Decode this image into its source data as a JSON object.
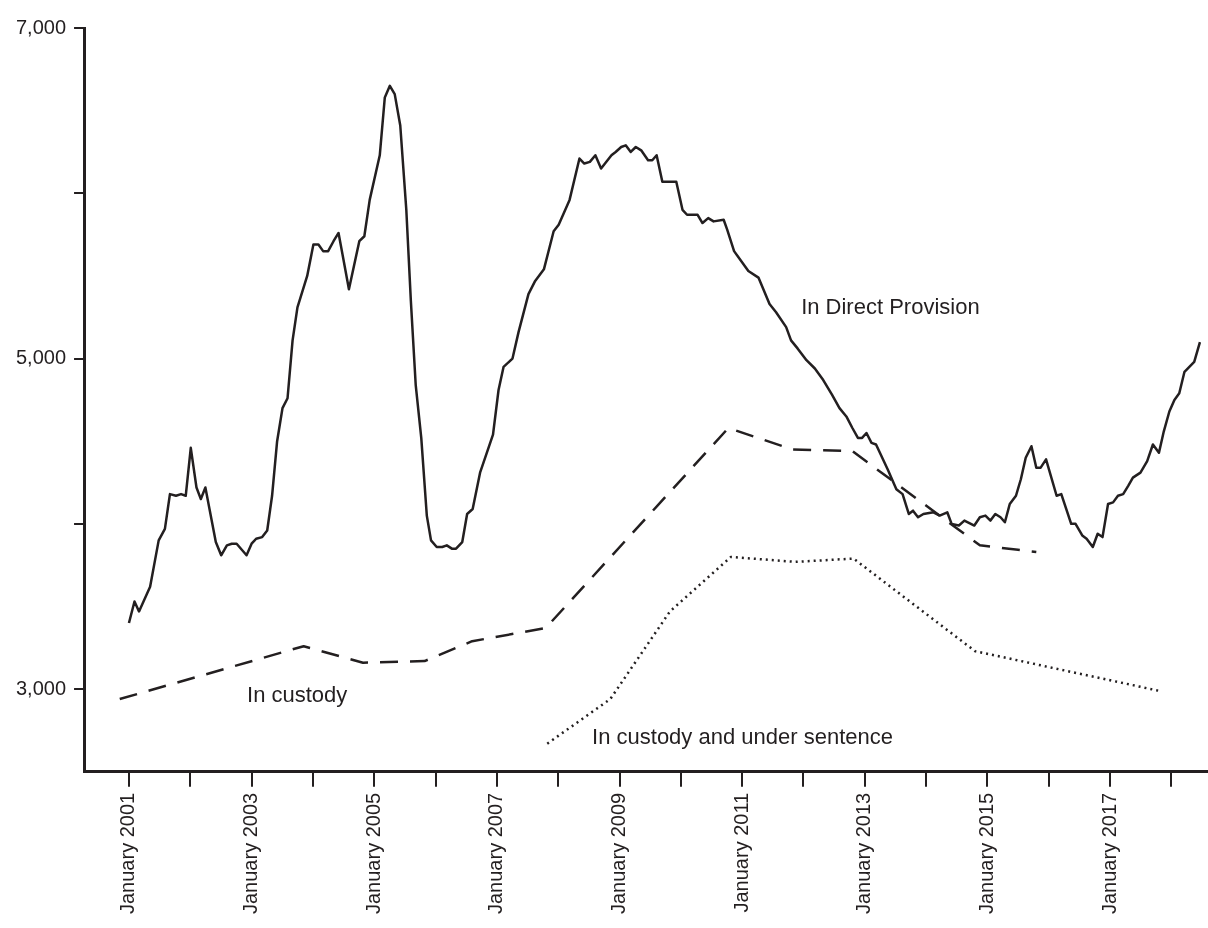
{
  "chart_data": {
    "type": "line",
    "xlim": [
      "2000-04-08",
      "2018-08-07"
    ],
    "ylim": [
      2500,
      7000
    ],
    "xticks": [
      {
        "value": "2001-01",
        "label": "January 2001"
      },
      {
        "value": "2002-01",
        "label": null
      },
      {
        "value": "2003-01",
        "label": "January 2003"
      },
      {
        "value": "2004-01",
        "label": null
      },
      {
        "value": "2005-01",
        "label": "January 2005"
      },
      {
        "value": "2006-01",
        "label": null
      },
      {
        "value": "2007-01",
        "label": "January 2007"
      },
      {
        "value": "2008-01",
        "label": null
      },
      {
        "value": "2009-01",
        "label": "January 2009"
      },
      {
        "value": "2010-01",
        "label": null
      },
      {
        "value": "2011-01",
        "label": "January 2011"
      },
      {
        "value": "2012-01",
        "label": null
      },
      {
        "value": "2013-01",
        "label": "January 2013"
      },
      {
        "value": "2014-01",
        "label": null
      },
      {
        "value": "2015-01",
        "label": "January 2015"
      },
      {
        "value": "2016-01",
        "label": null
      },
      {
        "value": "2017-01",
        "label": "January 2017"
      },
      {
        "value": "2018-01",
        "label": null
      }
    ],
    "yticks": [
      {
        "value": 3000,
        "label": "3,000"
      },
      {
        "value": 4000,
        "label": null
      },
      {
        "value": 5000,
        "label": "5,000"
      },
      {
        "value": 6000,
        "label": null
      },
      {
        "value": 7000,
        "label": "7,000"
      }
    ],
    "grid": false,
    "legend": false,
    "marker": "none",
    "series": [
      {
        "name": "In Direct Provision",
        "color": "#231f20",
        "line_style": "solid",
        "x": [
          "2001-01-01",
          "2001-02-03",
          "2001-03-02",
          "2001-05-07",
          "2001-06-27",
          "2001-08-03",
          "2001-09-02",
          "2001-10-08",
          "2001-11-07",
          "2001-12-05",
          "2002-01-04",
          "2002-02-07",
          "2002-03-05",
          "2002-04-01",
          "2002-06-02",
          "2002-07-04",
          "2002-08-07",
          "2002-09-05",
          "2002-10-04",
          "2002-12-02",
          "2003-01-01",
          "2003-01-28",
          "2003-03-05",
          "2003-04-04",
          "2003-05-03",
          "2003-06-02",
          "2003-07-04",
          "2003-08-03",
          "2003-09-02",
          "2003-10-01",
          "2003-11-28",
          "2004-01-04",
          "2004-02-03",
          "2004-03-02",
          "2004-04-01",
          "2004-05-03",
          "2004-06-02",
          "2004-08-03",
          "2004-10-04",
          "2004-11-03",
          "2004-12-05",
          "2005-02-03",
          "2005-03-05",
          "2005-04-04",
          "2005-05-03",
          "2005-06-05",
          "2005-07-11",
          "2005-08-07",
          "2005-09-05",
          "2005-10-08",
          "2005-11-10",
          "2005-12-05",
          "2006-01-08",
          "2006-02-10",
          "2006-03-09",
          "2006-04-08",
          "2006-05-03",
          "2006-06-09",
          "2006-07-08",
          "2006-08-10",
          "2006-09-23",
          "2006-12-09",
          "2007-01-11",
          "2007-02-10",
          "2007-04-04",
          "2007-05-10",
          "2007-07-08",
          "2007-08-17",
          "2007-10-08",
          "2007-12-05",
          "2008-01-04",
          "2008-03-09",
          "2008-05-07",
          "2008-06-05",
          "2008-07-08",
          "2008-08-10",
          "2008-09-13",
          "2008-11-14",
          "2008-12-09",
          "2009-01-11",
          "2009-02-07",
          "2009-03-09",
          "2009-04-08",
          "2009-05-10",
          "2009-06-20",
          "2009-07-15",
          "2009-08-10",
          "2009-09-13",
          "2009-12-05",
          "2010-01-11",
          "2010-02-07",
          "2010-04-11",
          "2010-05-10",
          "2010-06-13",
          "2010-07-15",
          "2010-09-13",
          "2010-10-04",
          "2010-11-14",
          "2011-02-07",
          "2011-04-08",
          "2011-06-13",
          "2011-07-22",
          "2011-09-20",
          "2011-10-19",
          "2011-11-28",
          "2012-01-19",
          "2012-03-09",
          "2012-04-28",
          "2012-06-20",
          "2012-08-03",
          "2012-09-13",
          "2012-10-19",
          "2012-11-21",
          "2012-12-16",
          "2013-01-11",
          "2013-02-10",
          "2013-03-09",
          "2013-05-17",
          "2013-07-08",
          "2013-08-14",
          "2013-09-20",
          "2013-10-15",
          "2013-11-14",
          "2013-12-16",
          "2014-02-14",
          "2014-03-23",
          "2014-05-07",
          "2014-06-02",
          "2014-07-15",
          "2014-08-17",
          "2014-10-15",
          "2014-11-17",
          "2014-12-20",
          "2015-01-19",
          "2015-02-17",
          "2015-03-20",
          "2015-04-15",
          "2015-05-14",
          "2015-06-20",
          "2015-07-19",
          "2015-08-17",
          "2015-09-20",
          "2015-10-19",
          "2015-11-14",
          "2015-12-16",
          "2016-02-17",
          "2016-03-16",
          "2016-05-14",
          "2016-06-09",
          "2016-07-19",
          "2016-08-14",
          "2016-09-20",
          "2016-10-19",
          "2016-11-17",
          "2016-12-20",
          "2017-01-19",
          "2017-02-17",
          "2017-03-20",
          "2017-04-19",
          "2017-05-17",
          "2017-07-01",
          "2017-08-10",
          "2017-09-13",
          "2017-10-19",
          "2017-11-17",
          "2017-12-20",
          "2018-01-19",
          "2018-02-17",
          "2018-03-20",
          "2018-05-17",
          "2018-06-20"
        ],
        "values": [
          3400,
          3530,
          3470,
          3620,
          3900,
          3970,
          4180,
          4170,
          4180,
          4170,
          4460,
          4220,
          4150,
          4220,
          3890,
          3810,
          3870,
          3880,
          3880,
          3810,
          3880,
          3910,
          3920,
          3960,
          4170,
          4500,
          4700,
          4760,
          5110,
          5310,
          5500,
          5690,
          5690,
          5650,
          5650,
          5710,
          5760,
          5420,
          5710,
          5740,
          5960,
          6230,
          6580,
          6650,
          6600,
          6410,
          5900,
          5350,
          4840,
          4520,
          4050,
          3900,
          3860,
          3860,
          3870,
          3850,
          3850,
          3890,
          4060,
          4090,
          4310,
          4540,
          4810,
          4950,
          5000,
          5160,
          5390,
          5470,
          5540,
          5770,
          5810,
          5960,
          6210,
          6180,
          6190,
          6230,
          6150,
          6230,
          6250,
          6280,
          6290,
          6250,
          6280,
          6260,
          6200,
          6200,
          6230,
          6070,
          6070,
          5900,
          5870,
          5870,
          5820,
          5850,
          5830,
          5840,
          5780,
          5650,
          5530,
          5490,
          5330,
          5280,
          5190,
          5110,
          5060,
          4990,
          4940,
          4870,
          4780,
          4700,
          4650,
          4580,
          4520,
          4520,
          4550,
          4490,
          4480,
          4330,
          4210,
          4180,
          4060,
          4080,
          4040,
          4060,
          4070,
          4050,
          4070,
          4000,
          3990,
          4020,
          3990,
          4040,
          4050,
          4020,
          4060,
          4040,
          4010,
          4120,
          4170,
          4270,
          4400,
          4470,
          4340,
          4340,
          4390,
          4170,
          4180,
          4000,
          4000,
          3930,
          3910,
          3860,
          3940,
          3920,
          4120,
          4130,
          4170,
          4180,
          4230,
          4280,
          4310,
          4380,
          4480,
          4430,
          4560,
          4680,
          4750,
          4790,
          4920,
          4980,
          5100
        ]
      },
      {
        "name": "In custody",
        "color": "#231f20",
        "line_style": "dashed",
        "x": [
          "2000-11-07",
          "2003-11-07",
          "2004-10-26",
          "2005-10-28",
          "2006-08-07",
          "2007-10-19",
          "2010-10-11",
          "2011-10-28",
          "2012-10-19",
          "2014-11-17",
          "2015-10-19"
        ],
        "values": [
          2940,
          3260,
          3160,
          3170,
          3290,
          3370,
          4580,
          4450,
          4440,
          3870,
          3830
        ]
      },
      {
        "name": "In custody and under sentence",
        "color": "#231f20",
        "line_style": "dotted",
        "x": [
          "2007-10-28",
          "2008-11-07",
          "2009-10-28",
          "2010-10-26",
          "2011-11-14",
          "2012-10-26",
          "2014-10-19",
          "2017-10-19"
        ],
        "values": [
          2670,
          2940,
          3470,
          3800,
          3770,
          3790,
          3230,
          2990
        ]
      }
    ]
  }
}
